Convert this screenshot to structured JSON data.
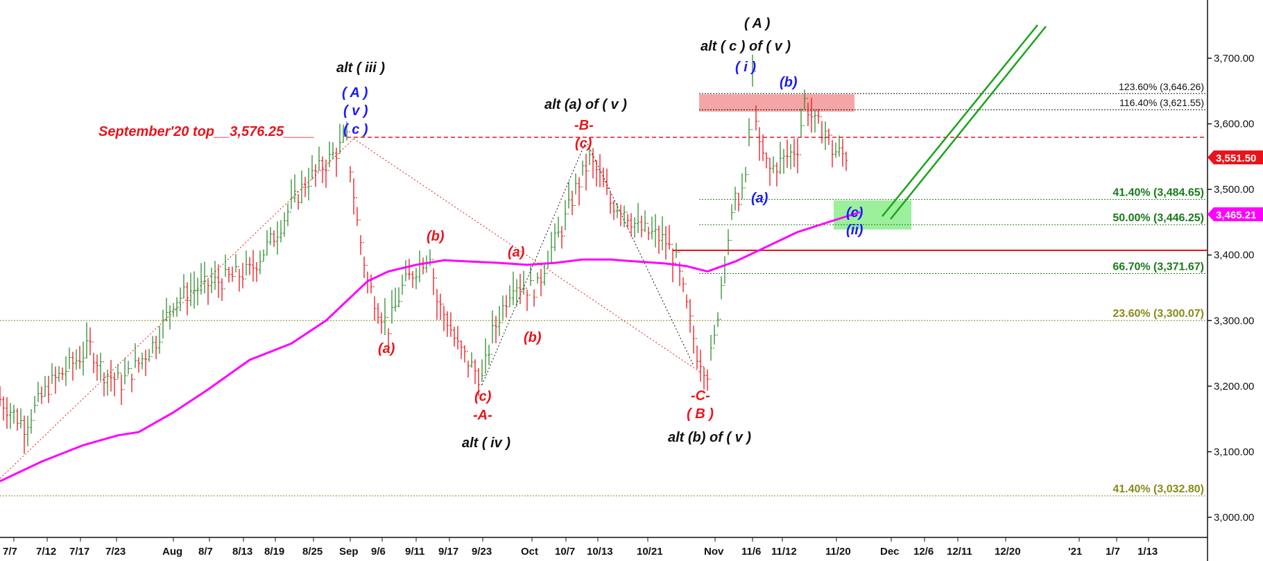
{
  "chart_data": {
    "type": "line",
    "title": "",
    "xlabel": "",
    "ylabel": "",
    "ylim": [
      2960,
      3770
    ],
    "grid": false,
    "x_tick_labels": [
      "7/7",
      "7/12",
      "7/17",
      "7/23",
      "Aug",
      "8/7",
      "8/13",
      "8/19",
      "8/25",
      "Sep",
      "9/6",
      "9/11",
      "9/17",
      "9/23",
      "Oct",
      "10/7",
      "10/13",
      "10/21",
      "Nov",
      "11/6",
      "11/12",
      "11/20",
      "Dec",
      "12/6",
      "12/11",
      "12/20",
      "'21",
      "1/7",
      "1/13"
    ],
    "y_tick_labels": [
      "3,000.00",
      "3,100.00",
      "3,200.00",
      "3,300.00",
      "3,400.00",
      "3,500.00",
      "3,600.00",
      "3,700.00"
    ],
    "y_ticks": [
      3000,
      3100,
      3200,
      3300,
      3400,
      3500,
      3600,
      3700
    ],
    "price_path": [
      [
        0,
        3180
      ],
      [
        35,
        3140
      ],
      [
        70,
        3200
      ],
      [
        100,
        3230
      ],
      [
        130,
        3260
      ],
      [
        150,
        3220
      ],
      [
        175,
        3205
      ],
      [
        200,
        3235
      ],
      [
        225,
        3270
      ],
      [
        250,
        3330
      ],
      [
        275,
        3345
      ],
      [
        300,
        3355
      ],
      [
        330,
        3365
      ],
      [
        360,
        3375
      ],
      [
        390,
        3420
      ],
      [
        420,
        3475
      ],
      [
        440,
        3510
      ],
      [
        470,
        3540
      ],
      [
        500,
        3576.25
      ],
      [
        515,
        3450
      ],
      [
        530,
        3360
      ],
      [
        545,
        3320
      ],
      [
        560,
        3290
      ],
      [
        580,
        3350
      ],
      [
        600,
        3380
      ],
      [
        620,
        3405
      ],
      [
        630,
        3330
      ],
      [
        645,
        3300
      ],
      [
        660,
        3260
      ],
      [
        680,
        3230
      ],
      [
        695,
        3210
      ],
      [
        710,
        3280
      ],
      [
        725,
        3320
      ],
      [
        740,
        3360
      ],
      [
        760,
        3350
      ],
      [
        775,
        3350
      ],
      [
        790,
        3400
      ],
      [
        810,
        3440
      ],
      [
        830,
        3500
      ],
      [
        850,
        3545
      ],
      [
        865,
        3520
      ],
      [
        880,
        3480
      ],
      [
        900,
        3470
      ],
      [
        920,
        3440
      ],
      [
        945,
        3430
      ],
      [
        960,
        3420
      ],
      [
        975,
        3390
      ],
      [
        990,
        3320
      ],
      [
        1005,
        3250
      ],
      [
        1020,
        3222
      ],
      [
        1030,
        3270
      ],
      [
        1045,
        3400
      ],
      [
        1060,
        3480
      ],
      [
        1075,
        3510
      ],
      [
        1085,
        3672
      ],
      [
        1095,
        3560
      ],
      [
        1110,
        3530
      ],
      [
        1130,
        3545
      ],
      [
        1150,
        3565
      ],
      [
        1160,
        3635
      ],
      [
        1175,
        3600
      ],
      [
        1190,
        3590
      ],
      [
        1200,
        3560
      ],
      [
        1215,
        3553
      ],
      [
        1225,
        3551.5
      ]
    ],
    "moving_average": {
      "last_value": 3465.21,
      "last_value_label": "3,465.21",
      "color": "#ff00ff",
      "path": [
        [
          0,
          3055
        ],
        [
          60,
          3085
        ],
        [
          120,
          3110
        ],
        [
          170,
          3125
        ],
        [
          200,
          3130
        ],
        [
          250,
          3160
        ],
        [
          300,
          3195
        ],
        [
          360,
          3240
        ],
        [
          420,
          3265
        ],
        [
          470,
          3300
        ],
        [
          500,
          3330
        ],
        [
          530,
          3360
        ],
        [
          560,
          3375
        ],
        [
          600,
          3385
        ],
        [
          640,
          3392
        ],
        [
          680,
          3390
        ],
        [
          720,
          3388
        ],
        [
          760,
          3385
        ],
        [
          800,
          3388
        ],
        [
          840,
          3393
        ],
        [
          880,
          3393
        ],
        [
          920,
          3390
        ],
        [
          960,
          3387
        ],
        [
          990,
          3383
        ],
        [
          1020,
          3375
        ],
        [
          1060,
          3390
        ],
        [
          1100,
          3410
        ],
        [
          1150,
          3435
        ],
        [
          1200,
          3452
        ],
        [
          1240,
          3465.21
        ]
      ]
    },
    "last_price": {
      "value": 3551.5,
      "label": "3,551.50",
      "color": "#e8141b"
    },
    "fib_levels": [
      {
        "label": "123.60% (3,646.26)",
        "value": 3646.26,
        "color": "#111111",
        "style": "dotted"
      },
      {
        "label": "116.40% (3,621.55)",
        "value": 3621.55,
        "color": "#111111",
        "style": "dotted"
      },
      {
        "label": "41.40% (3,484.65)",
        "value": 3484.65,
        "color": "#1a7a1a",
        "style": "dotted"
      },
      {
        "label": "50.00% (3,446.25)",
        "value": 3446.25,
        "color": "#1a7a1a",
        "style": "dotted"
      },
      {
        "label": "66.70% (3,371.67)",
        "value": 3371.67,
        "color": "#1a7a1a",
        "style": "dotted"
      },
      {
        "label": "23.60% (3,300.07)",
        "value": 3300.07,
        "color": "#8a8a1a",
        "style": "dotted"
      },
      {
        "label": "41.40% (3,032.80)",
        "value": 3032.8,
        "color": "#8a8a1a",
        "style": "dotted"
      }
    ],
    "sept_top": {
      "label": "September'20 top__3,576.25____",
      "value": 3576.25,
      "color": "#e8141b"
    },
    "support_line": {
      "value": 3410,
      "color": "#e8141b"
    },
    "zones": [
      {
        "name": "resistance",
        "y1": 3646.26,
        "y2": 3621.55,
        "color": "#f4a6a6"
      },
      {
        "name": "target",
        "y1": 3484.65,
        "y2": 3440,
        "color": "#9cf09c"
      }
    ],
    "annotations": [
      {
        "text": "( A )",
        "color": "#111111"
      },
      {
        "text": "alt ( c ) of ( v )",
        "color": "#111111"
      },
      {
        "text": "( i )",
        "color": "#1a1aff"
      },
      {
        "text": "(b)",
        "color": "#1a1aff"
      },
      {
        "text": "(a)",
        "color": "#1a1aff"
      },
      {
        "text": "(c)",
        "color": "#1a1aff"
      },
      {
        "text": "(ii)",
        "color": "#1a1aff"
      },
      {
        "text": "alt ( iii )",
        "color": "#111111"
      },
      {
        "text": "( A )",
        "color": "#1a1aff"
      },
      {
        "text": "( v )",
        "color": "#1a1aff"
      },
      {
        "text": "( c )",
        "color": "#1a1aff"
      },
      {
        "text": "alt (a) of ( v )",
        "color": "#111111"
      },
      {
        "text": "-B-",
        "color": "#e8141b"
      },
      {
        "text": "(c)",
        "color": "#e8141b"
      },
      {
        "text": "(b)",
        "color": "#e8141b"
      },
      {
        "text": "(a)",
        "color": "#e8141b"
      },
      {
        "text": "(a)",
        "color": "#e8141b"
      },
      {
        "text": "(b)",
        "color": "#e8141b"
      },
      {
        "text": "(c)",
        "color": "#e8141b"
      },
      {
        "text": "-A-",
        "color": "#e8141b"
      },
      {
        "text": "alt ( iv )",
        "color": "#111111"
      },
      {
        "text": "-C-",
        "color": "#e8141b"
      },
      {
        "text": "( B )",
        "color": "#e8141b"
      },
      {
        "text": "alt (b) of ( v )",
        "color": "#111111"
      }
    ],
    "colors": {
      "up_bars": "#2e8b2e",
      "down_bars": "#e8141b",
      "projection": "#1aa31a",
      "grid_dotted": "#888888"
    }
  }
}
